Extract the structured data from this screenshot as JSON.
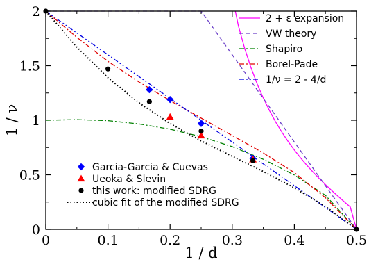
{
  "chart_data": {
    "type": "scatter",
    "xlabel": "1 / d",
    "ylabel": "1 / ν",
    "xlim": [
      0,
      0.5
    ],
    "ylim": [
      0,
      2
    ],
    "x_ticks": [
      {
        "value": 0,
        "label": "0"
      },
      {
        "value": 0.1,
        "label": "0.1"
      },
      {
        "value": 0.2,
        "label": "0.2"
      },
      {
        "value": 0.3,
        "label": "0.3"
      },
      {
        "value": 0.4,
        "label": "0.4"
      },
      {
        "value": 0.5,
        "label": "0.5"
      }
    ],
    "y_ticks": [
      {
        "value": 0,
        "label": "0"
      },
      {
        "value": 0.5,
        "label": "0.5"
      },
      {
        "value": 1,
        "label": "1"
      },
      {
        "value": 1.5,
        "label": "1.5"
      },
      {
        "value": 2,
        "label": "2"
      }
    ],
    "legend_top": {
      "position": "top-right",
      "entries": [
        {
          "series": "eps_expansion",
          "label": "2 + ε expansion"
        },
        {
          "series": "vw_theory",
          "label": "VW theory"
        },
        {
          "series": "shapiro",
          "label": "Shapiro"
        },
        {
          "series": "borel_pade",
          "label": "Borel-Pade"
        },
        {
          "series": "simple_formula",
          "label": "1/ν = 2 - 4/d"
        }
      ]
    },
    "legend_bottom": {
      "position": "bottom-left",
      "entries": [
        {
          "series": "garcia",
          "label": "Garcia-Garcia & Cuevas"
        },
        {
          "series": "ueoka",
          "label": "Ueoka & Slevin"
        },
        {
          "series": "this_work",
          "label": "this work: modified SDRG"
        },
        {
          "series": "cubic_fit",
          "label": "cubic fit of the modified SDRG"
        }
      ]
    },
    "line_series": [
      {
        "key": "eps_expansion",
        "color": "#ff00ff",
        "dash": "",
        "x": [
          0.305,
          0.31,
          0.32,
          0.33,
          0.34,
          0.35,
          0.36,
          0.37,
          0.38,
          0.39,
          0.4,
          0.41,
          0.42,
          0.43,
          0.44,
          0.45,
          0.46,
          0.47,
          0.48,
          0.49,
          0.5
        ],
        "y": [
          2.0,
          1.862,
          1.659,
          1.485,
          1.335,
          1.204,
          1.087,
          0.983,
          0.89,
          0.805,
          0.727,
          0.655,
          0.588,
          0.525,
          0.466,
          0.41,
          0.356,
          0.305,
          0.254,
          0.205,
          0.0
        ]
      },
      {
        "key": "vw_theory",
        "color": "#6a3fc8",
        "dash": "6,4",
        "x": [
          0.0,
          0.25,
          0.5
        ],
        "y": [
          2.0,
          2.0,
          0.0
        ]
      },
      {
        "key": "shapiro",
        "color": "#008000",
        "dash": "7,3,2,3",
        "x": [
          0.0,
          0.05,
          0.1,
          0.15,
          0.2,
          0.25,
          0.3,
          0.35,
          0.4,
          0.45,
          0.5
        ],
        "y": [
          1.0,
          1.006,
          0.996,
          0.966,
          0.918,
          0.849,
          0.758,
          0.642,
          0.498,
          0.312,
          0.0
        ]
      },
      {
        "key": "borel_pade",
        "color": "#e00000",
        "dash": "7,3,2,3",
        "x": [
          0.0,
          0.05,
          0.1,
          0.15,
          0.2,
          0.25,
          0.3,
          0.35,
          0.4,
          0.45,
          0.5
        ],
        "y": [
          2.0,
          1.76,
          1.54,
          1.35,
          1.18,
          1.02,
          0.86,
          0.7,
          0.52,
          0.29,
          0.0
        ]
      },
      {
        "key": "simple_formula",
        "color": "#0000e0",
        "dash": "7,3,2,3,2,3",
        "x": [
          0.0,
          0.5
        ],
        "y": [
          2.0,
          0.0
        ]
      },
      {
        "key": "cubic_fit",
        "color": "#000000",
        "dash": "1.5,3",
        "x": [
          0.0,
          0.05,
          0.1,
          0.15,
          0.2,
          0.25,
          0.3,
          0.35,
          0.4,
          0.45,
          0.5
        ],
        "y": [
          2.0,
          1.67,
          1.39,
          1.16,
          0.97,
          0.81,
          0.67,
          0.53,
          0.38,
          0.21,
          0.0
        ]
      }
    ],
    "marker_series": [
      {
        "key": "garcia",
        "marker": "diamond",
        "color": "#0000ff",
        "x": [
          0.1667,
          0.2,
          0.25,
          0.3333
        ],
        "y": [
          1.28,
          1.19,
          0.97,
          0.65
        ]
      },
      {
        "key": "ueoka",
        "marker": "triangle",
        "color": "#ff0000",
        "x": [
          0.2,
          0.25,
          0.3333
        ],
        "y": [
          1.03,
          0.86,
          0.64
        ]
      },
      {
        "key": "this_work",
        "marker": "circle",
        "color": "#000000",
        "x": [
          0.0,
          0.1,
          0.1667,
          0.25,
          0.3333,
          0.5
        ],
        "y": [
          2.0,
          1.47,
          1.17,
          0.9,
          0.63,
          0.0
        ]
      }
    ]
  }
}
